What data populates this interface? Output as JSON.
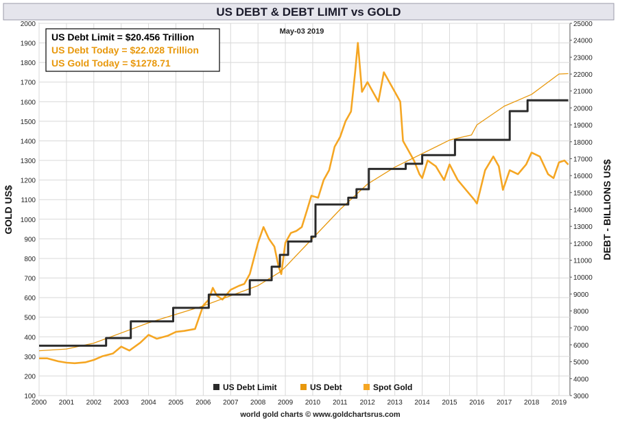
{
  "chart_data": {
    "type": "line",
    "title": "US DEBT & DEBT LIMIT vs GOLD",
    "date_label": "May-03  2019",
    "ylabel_left": "GOLD US$",
    "ylabel_right": "DEBT - BILLIONS US$",
    "xlabel": "",
    "footer": "world gold charts © www.goldchartsrus.com",
    "info_box": [
      {
        "text": "US Debt Limit    = $20.456 Trillion",
        "color": "#000000"
      },
      {
        "text": "US Debt Today = $22.028 Trillion",
        "color": "#e8980c"
      },
      {
        "text": "US Gold Today = $1278.71",
        "color": "#e8980c"
      }
    ],
    "grid": true,
    "legend_position": "bottom-center",
    "x_range": [
      2000,
      2019.4
    ],
    "x_ticks": [
      "2000",
      "2001",
      "2002",
      "2003",
      "2004",
      "2005",
      "2006",
      "2007",
      "2008",
      "2009",
      "2010",
      "2011",
      "2012",
      "2013",
      "2014",
      "2015",
      "2016",
      "2017",
      "2018",
      "2019"
    ],
    "y_left_range": [
      100,
      2000
    ],
    "y_left_ticks": [
      "100",
      "200",
      "300",
      "400",
      "500",
      "600",
      "700",
      "800",
      "900",
      "1000",
      "1100",
      "1200",
      "1300",
      "1400",
      "1500",
      "1600",
      "1700",
      "1800",
      "1900",
      "2000"
    ],
    "y_right_range": [
      3000,
      25000
    ],
    "y_right_ticks": [
      "3000",
      "4000",
      "5000",
      "6000",
      "7000",
      "8000",
      "9000",
      "10000",
      "11000",
      "12000",
      "13000",
      "14000",
      "15000",
      "16000",
      "17000",
      "18000",
      "19000",
      "20000",
      "21000",
      "22000",
      "23000",
      "24000",
      "25000"
    ],
    "legend": [
      {
        "name": "US Debt Limit",
        "color": "#2a2a2a"
      },
      {
        "name": "US Debt",
        "color": "#e8980c"
      },
      {
        "name": "Spot Gold",
        "color": "#f5a623"
      }
    ],
    "series": [
      {
        "name": "Spot Gold",
        "axis": "left",
        "color": "#f5a623",
        "x": [
          2000.0,
          2000.3,
          2000.7,
          2001.0,
          2001.3,
          2001.7,
          2002.0,
          2002.3,
          2002.7,
          2003.0,
          2003.3,
          2003.7,
          2004.0,
          2004.3,
          2004.7,
          2005.0,
          2005.3,
          2005.7,
          2006.0,
          2006.2,
          2006.35,
          2006.5,
          2006.7,
          2007.0,
          2007.3,
          2007.5,
          2007.7,
          2008.0,
          2008.2,
          2008.4,
          2008.6,
          2008.75,
          2008.85,
          2009.0,
          2009.2,
          2009.4,
          2009.6,
          2009.8,
          2009.95,
          2010.2,
          2010.4,
          2010.6,
          2010.8,
          2011.0,
          2011.2,
          2011.4,
          2011.55,
          2011.65,
          2011.8,
          2012.0,
          2012.2,
          2012.4,
          2012.6,
          2012.8,
          2013.0,
          2013.2,
          2013.3,
          2013.5,
          2013.7,
          2013.9,
          2014.0,
          2014.2,
          2014.5,
          2014.8,
          2015.0,
          2015.3,
          2015.6,
          2015.9,
          2016.0,
          2016.3,
          2016.6,
          2016.8,
          2016.95,
          2017.2,
          2017.5,
          2017.8,
          2018.0,
          2018.3,
          2018.6,
          2018.8,
          2019.0,
          2019.2,
          2019.34
        ],
        "values": [
          290,
          290,
          275,
          268,
          265,
          270,
          282,
          300,
          315,
          350,
          330,
          370,
          410,
          390,
          405,
          425,
          430,
          440,
          560,
          590,
          650,
          610,
          590,
          640,
          660,
          670,
          720,
          880,
          960,
          900,
          860,
          760,
          720,
          880,
          930,
          940,
          960,
          1050,
          1120,
          1110,
          1200,
          1250,
          1370,
          1420,
          1500,
          1550,
          1750,
          1900,
          1650,
          1700,
          1650,
          1600,
          1750,
          1700,
          1650,
          1600,
          1400,
          1350,
          1300,
          1230,
          1210,
          1300,
          1270,
          1200,
          1280,
          1200,
          1150,
          1100,
          1080,
          1250,
          1320,
          1270,
          1150,
          1250,
          1230,
          1280,
          1340,
          1320,
          1230,
          1210,
          1290,
          1300,
          1279
        ]
      },
      {
        "name": "US Debt",
        "axis": "right",
        "color": "#e8980c",
        "x": [
          2000.0,
          2001.0,
          2002.0,
          2003.0,
          2004.0,
          2005.0,
          2006.0,
          2007.0,
          2008.0,
          2008.8,
          2009.0,
          2010.0,
          2011.0,
          2012.0,
          2013.0,
          2014.0,
          2015.0,
          2015.8,
          2016.0,
          2017.0,
          2018.0,
          2019.0,
          2019.34
        ],
        "values": [
          5650,
          5750,
          6100,
          6700,
          7300,
          7800,
          8300,
          8900,
          9500,
          10300,
          10600,
          12300,
          14000,
          15500,
          16500,
          17300,
          18100,
          18400,
          19000,
          20100,
          20800,
          22000,
          22028
        ]
      },
      {
        "name": "US Debt Limit",
        "axis": "right",
        "color": "#2a2a2a",
        "x": [
          2000.0,
          2002.45,
          2002.45,
          2003.35,
          2003.35,
          2004.9,
          2004.9,
          2006.2,
          2006.2,
          2007.7,
          2007.7,
          2008.5,
          2008.5,
          2008.8,
          2008.8,
          2009.1,
          2009.1,
          2009.95,
          2009.95,
          2010.1,
          2010.1,
          2011.3,
          2011.3,
          2011.6,
          2011.6,
          2012.05,
          2012.05,
          2013.4,
          2013.4,
          2014.0,
          2014.0,
          2015.2,
          2015.2,
          2017.2,
          2017.2,
          2017.85,
          2017.85,
          2019.34
        ],
        "values": [
          5950,
          5950,
          6400,
          6400,
          7384,
          7384,
          8184,
          8184,
          8965,
          8965,
          9815,
          9815,
          10615,
          10615,
          11315,
          11315,
          12104,
          12104,
          12394,
          12394,
          14294,
          14294,
          14694,
          14694,
          15194,
          15194,
          16394,
          16394,
          16699,
          16699,
          17212,
          17212,
          18113,
          18113,
          19808,
          19808,
          20456,
          20456
        ]
      }
    ]
  }
}
